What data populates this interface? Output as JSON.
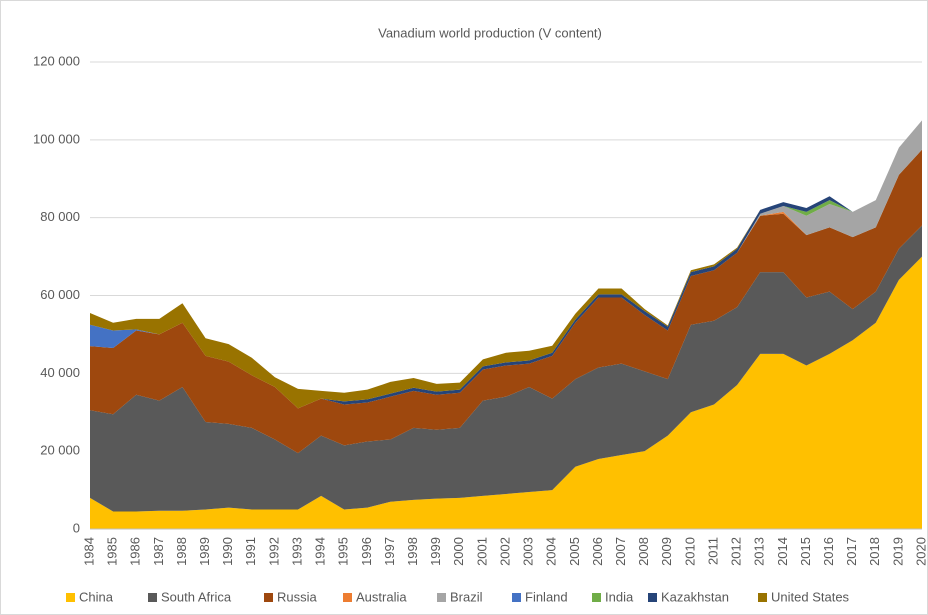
{
  "chart_data": {
    "type": "stacked_area",
    "title": "Vanadium world production (V content)",
    "categories": [
      "1984",
      "1985",
      "1986",
      "1987",
      "1988",
      "1989",
      "1990",
      "1991",
      "1992",
      "1993",
      "1994",
      "1995",
      "1996",
      "1997",
      "1998",
      "1999",
      "2000",
      "2001",
      "2002",
      "2003",
      "2004",
      "2005",
      "2006",
      "2007",
      "2008",
      "2009",
      "2010",
      "2011",
      "2012",
      "2013",
      "2014",
      "2015",
      "2016",
      "2017",
      "2018",
      "2019",
      "2020"
    ],
    "series": [
      {
        "name": "China",
        "color": "#ffc000",
        "values": [
          8000,
          4500,
          4500,
          4700,
          4700,
          5000,
          5500,
          5000,
          5000,
          5000,
          8500,
          5000,
          5500,
          7000,
          7500,
          7800,
          8000,
          8500,
          9000,
          9500,
          10000,
          16000,
          18000,
          19000,
          20000,
          24000,
          30000,
          32000,
          37000,
          45000,
          45000,
          42000,
          45000,
          48500,
          53000,
          64000,
          70000
        ]
      },
      {
        "name": "South Africa",
        "color": "#595959",
        "values": [
          22500,
          25000,
          30000,
          28300,
          31800,
          22500,
          21500,
          21000,
          18000,
          14500,
          15500,
          16500,
          17000,
          16000,
          18500,
          17700,
          18000,
          24500,
          25000,
          27000,
          23500,
          22500,
          23500,
          23500,
          20500,
          14500,
          22500,
          21500,
          20000,
          21000,
          21000,
          17500,
          16000,
          8000,
          8000,
          8000,
          8000
        ]
      },
      {
        "name": "Russia",
        "color": "#9e480e",
        "values": [
          16500,
          17000,
          16500,
          17000,
          16500,
          17000,
          16000,
          13500,
          13500,
          11500,
          9500,
          10500,
          10000,
          11000,
          9500,
          9000,
          9000,
          8000,
          8000,
          6000,
          11000,
          14500,
          18000,
          17000,
          14500,
          12500,
          12500,
          13000,
          14000,
          14500,
          15000,
          16000,
          16500,
          18500,
          16500,
          19000,
          19500
        ]
      },
      {
        "name": "Australia",
        "color": "#ed7d31",
        "values": [
          0,
          0,
          0,
          0,
          0,
          0,
          0,
          0,
          0,
          0,
          0,
          0,
          0,
          0,
          0,
          0,
          0,
          0,
          0,
          0,
          0,
          0,
          0,
          0,
          0,
          0,
          0,
          0,
          0,
          0,
          500,
          0,
          0,
          0,
          0,
          0,
          0
        ]
      },
      {
        "name": "Brazil",
        "color": "#a5a5a5",
        "values": [
          0,
          0,
          0,
          0,
          0,
          0,
          0,
          0,
          0,
          0,
          0,
          0,
          0,
          0,
          0,
          0,
          0,
          0,
          0,
          0,
          0,
          0,
          0,
          0,
          0,
          0,
          0,
          0,
          0,
          500,
          1500,
          5000,
          6000,
          6500,
          7000,
          7000,
          7500
        ]
      },
      {
        "name": "Finland",
        "color": "#4472c4",
        "values": [
          5500,
          4500,
          300,
          0,
          0,
          0,
          0,
          0,
          0,
          0,
          0,
          0,
          0,
          0,
          0,
          0,
          0,
          0,
          0,
          0,
          0,
          0,
          0,
          0,
          0,
          0,
          0,
          0,
          0,
          0,
          0,
          0,
          0,
          0,
          0,
          0,
          0
        ]
      },
      {
        "name": "India",
        "color": "#70ad47",
        "values": [
          0,
          0,
          0,
          0,
          0,
          0,
          0,
          0,
          0,
          0,
          0,
          0,
          0,
          0,
          0,
          0,
          0,
          0,
          0,
          0,
          0,
          0,
          0,
          0,
          0,
          0,
          0,
          0,
          0,
          0,
          0,
          1000,
          1000,
          0,
          0,
          0,
          0
        ]
      },
      {
        "name": "Kazakhstan",
        "color": "#264478",
        "values": [
          0,
          0,
          0,
          0,
          0,
          0,
          0,
          0,
          0,
          0,
          0,
          800,
          800,
          800,
          800,
          800,
          800,
          800,
          800,
          800,
          800,
          800,
          800,
          800,
          1000,
          1000,
          1000,
          1000,
          1000,
          1000,
          1000,
          1000,
          1000,
          0,
          0,
          0,
          0
        ]
      },
      {
        "name": "United States",
        "color": "#997300",
        "values": [
          3000,
          2000,
          2700,
          4000,
          5000,
          4500,
          4500,
          4500,
          2500,
          5000,
          2000,
          2200,
          2500,
          3000,
          2500,
          2000,
          1800,
          1800,
          2500,
          2500,
          1800,
          1500,
          1500,
          1500,
          500,
          300,
          500,
          500,
          300,
          0,
          0,
          0,
          0,
          0,
          0,
          0,
          0
        ]
      }
    ],
    "ylim": [
      0,
      120000
    ],
    "yticks": [
      0,
      {
        "value": 20000,
        "label": "20 000"
      },
      {
        "value": 40000,
        "label": "40 000"
      },
      {
        "value": 60000,
        "label": "60 000"
      },
      {
        "value": 80000,
        "label": "80 000"
      },
      {
        "value": 100000,
        "label": "100 000"
      },
      {
        "value": 120000,
        "label": "120 000"
      }
    ],
    "grid": true,
    "legend": "bottom"
  }
}
